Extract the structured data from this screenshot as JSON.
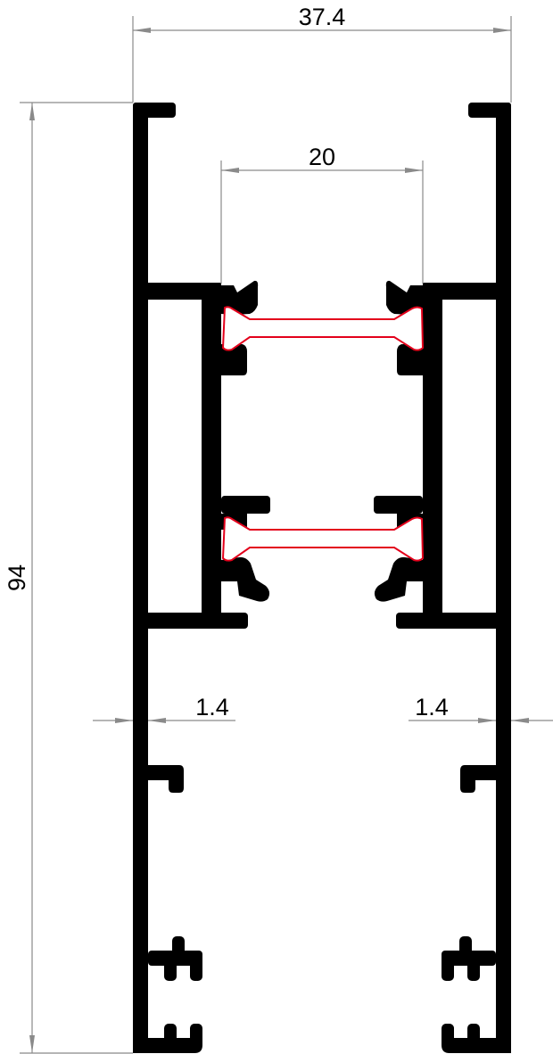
{
  "drawing": {
    "type": "profile cross-section",
    "dimensions": {
      "overall_width": "37.4",
      "inner_width": "20",
      "overall_height": "94",
      "wall_left": "1.4",
      "wall_right": "1.4"
    },
    "colors": {
      "profile": "#000000",
      "conductor_outline": "#e3001b",
      "dimension_lines": "#8a8a8a"
    }
  }
}
